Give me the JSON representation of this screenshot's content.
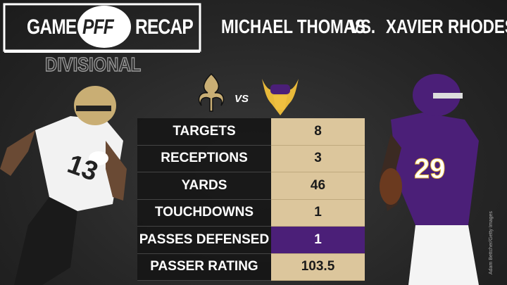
{
  "header": {
    "game": "GAME",
    "logo": "PFF",
    "recap": "RECAP",
    "round": "DIVISIONAL"
  },
  "matchup": {
    "player1": "MICHAEL THOMAS",
    "vs": "VS.",
    "player2": "XAVIER RHODES",
    "logos_vs": "VS"
  },
  "player1_jersey": "13",
  "player2_jersey": "29",
  "table": {
    "rows": [
      [
        "TARGETS",
        "8"
      ],
      [
        "RECEPTIONS",
        "3"
      ],
      [
        "YARDS",
        "46"
      ],
      [
        "TOUCHDOWNS",
        "1"
      ],
      [
        "PASSES DEFENSED",
        "1"
      ],
      [
        "PASSER RATING",
        "103.5"
      ]
    ]
  },
  "credit": "Adam Bettcher/Getty Images"
}
